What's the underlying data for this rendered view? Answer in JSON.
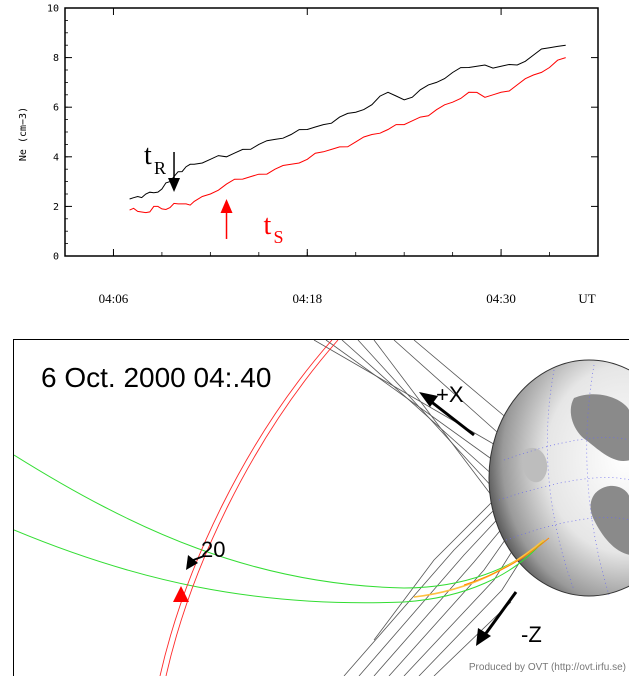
{
  "chart_data": {
    "type": "line",
    "ylabel": "Ne (cm−3)",
    "ylim": [
      0,
      10
    ],
    "yticks": [
      0,
      2,
      4,
      6,
      8,
      10
    ],
    "x_tick_labels": [
      "04:06",
      "04:18",
      "04:30"
    ],
    "x_tick_values": [
      "04:06",
      "04:18",
      "04:30"
    ],
    "xlim": [
      "04:03",
      "04:36"
    ],
    "x_unit_label": "UT",
    "grid": false,
    "series": [
      {
        "color": "#000000",
        "x": [
          "04:07",
          "04:07:30",
          "04:08",
          "04:08:30",
          "04:09",
          "04:09:30",
          "04:10",
          "04:10:30",
          "04:11",
          "04:12",
          "04:13",
          "04:14",
          "04:15",
          "04:16",
          "04:17",
          "04:18",
          "04:19",
          "04:20",
          "04:21",
          "04:22",
          "04:23",
          "04:24",
          "04:25",
          "04:26",
          "04:27",
          "04:28",
          "04:29",
          "04:30",
          "04:31",
          "04:32",
          "04:33",
          "04:34"
        ],
        "values": [
          2.3,
          2.4,
          2.5,
          2.55,
          2.7,
          3.0,
          3.4,
          3.6,
          3.7,
          3.9,
          4.0,
          4.3,
          4.5,
          4.7,
          4.9,
          5.1,
          5.3,
          5.6,
          5.8,
          6.1,
          6.6,
          6.3,
          6.7,
          7.0,
          7.4,
          7.6,
          7.7,
          7.65,
          7.7,
          8.1,
          8.4,
          8.5
        ]
      },
      {
        "color": "#ff0000",
        "x": [
          "04:07",
          "04:07:30",
          "04:08",
          "04:08:30",
          "04:09",
          "04:09:30",
          "04:10",
          "04:10:30",
          "04:11",
          "04:12",
          "04:13",
          "04:14",
          "04:15",
          "04:16",
          "04:17",
          "04:18",
          "04:19",
          "04:20",
          "04:21",
          "04:22",
          "04:23",
          "04:24",
          "04:25",
          "04:26",
          "04:27",
          "04:28",
          "04:29",
          "04:30",
          "04:31",
          "04:32",
          "04:33",
          "04:34"
        ],
        "values": [
          1.85,
          1.8,
          1.75,
          2.0,
          1.9,
          1.95,
          2.1,
          2.1,
          2.2,
          2.5,
          2.9,
          3.1,
          3.3,
          3.5,
          3.7,
          3.9,
          4.2,
          4.4,
          4.6,
          4.9,
          5.1,
          5.3,
          5.6,
          5.9,
          6.2,
          6.6,
          6.4,
          6.6,
          6.9,
          7.3,
          7.6,
          8.0
        ]
      }
    ],
    "annotations": [
      {
        "id": "tR",
        "main": "t",
        "sub": "R",
        "color": "#000000",
        "x": "04:09:45",
        "value": 2.5,
        "direction": "down"
      },
      {
        "id": "tS",
        "main": "t",
        "sub": "S",
        "color": "#ff0000",
        "x": "04:13",
        "value": 2.3,
        "direction": "up"
      }
    ]
  },
  "orbit_panel": {
    "title": "6 Oct. 2000  04:.40",
    "axis_labels": {
      "x": "+X",
      "z": "-Z"
    },
    "marker_label": "20",
    "credit": "Produced by OVT (http://ovt.irfu.se)",
    "colors": {
      "orbit": "#ff2a2a",
      "field_line": "#33dd33",
      "magnetosphere": "#555555",
      "earth_shade": "#777777"
    }
  }
}
